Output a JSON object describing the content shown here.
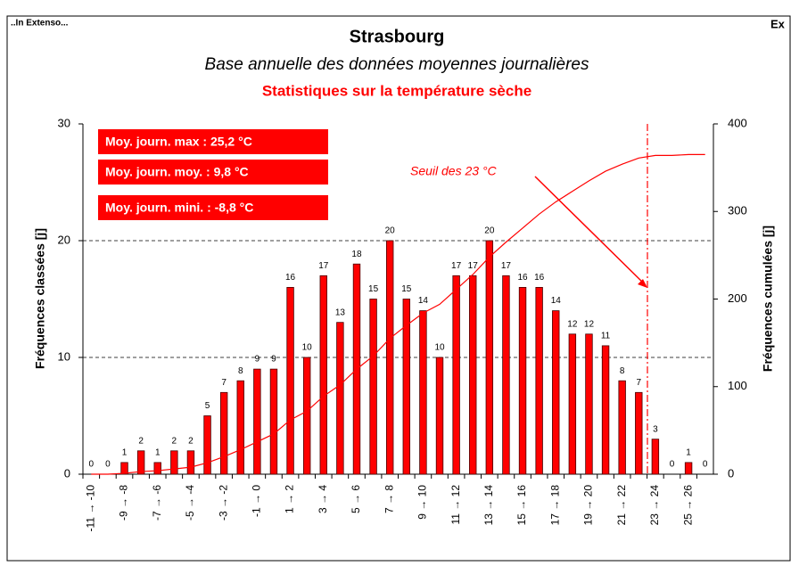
{
  "chart_data": {
    "type": "bar",
    "header_left": "..In Extenso...",
    "header_right": "Ex",
    "title": "Strasbourg",
    "subtitle": "Base annuelle des données moyennes journalières",
    "subtitle2": "Statistiques sur la température sèche",
    "boxes": [
      "Moy. journ. max : 25,2 °C",
      "Moy. journ. moy. : 9,8 °C",
      "Moy. journ. mini. : -8,8 °C"
    ],
    "annotation": "Seuil des 23 °C",
    "ylabel": "Fréquences classées [j]",
    "y2label": "Fréquences cumulées [j]",
    "categories": [
      "-11 → -10",
      null,
      "-9 → -8",
      null,
      "-7 → -6",
      null,
      "-5 → -4",
      null,
      "-3 → -2",
      null,
      "-1 → 0",
      null,
      "1 → 2",
      null,
      "3 → 4",
      null,
      "5 → 6",
      null,
      "7 → 8",
      null,
      "9 → 10",
      null,
      "11 → 12",
      null,
      "13 → 14",
      null,
      "15 → 16",
      null,
      "17 → 18",
      null,
      "19 → 20",
      null,
      "21 → 22",
      null,
      "23 → 24",
      null,
      "25 → 26",
      null
    ],
    "series": [
      {
        "name": "Fréquences classées",
        "color": "#ff0000",
        "values": [
          0,
          0,
          1,
          2,
          1,
          2,
          2,
          5,
          7,
          8,
          9,
          9,
          16,
          10,
          17,
          13,
          18,
          15,
          20,
          15,
          14,
          10,
          17,
          17,
          20,
          17,
          16,
          16,
          14,
          12,
          12,
          11,
          8,
          7,
          3,
          0,
          1,
          0
        ]
      },
      {
        "name": "Fréquences cumulées",
        "color": "#ff0000",
        "axis": "y2",
        "values": [
          0,
          0,
          1,
          3,
          4,
          6,
          8,
          13,
          20,
          28,
          37,
          46,
          62,
          72,
          89,
          102,
          120,
          135,
          155,
          170,
          184,
          194,
          211,
          228,
          248,
          265,
          281,
          297,
          311,
          323,
          335,
          346,
          354,
          361,
          364,
          364,
          365,
          365
        ]
      }
    ],
    "ylim": [
      0,
      30
    ],
    "yticks": [
      0,
      10,
      20,
      30
    ],
    "y2lim": [
      0,
      400
    ],
    "y2ticks": [
      0,
      100,
      200,
      300,
      400
    ],
    "grid": true
  }
}
